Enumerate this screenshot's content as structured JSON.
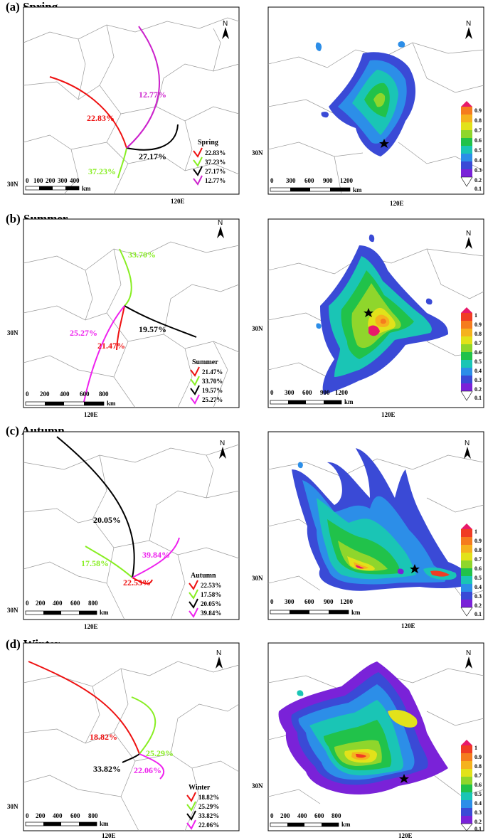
{
  "panels": [
    {
      "title": "(a) Spring",
      "legend_title": "Spring",
      "lat_label": "30N",
      "lon_label": "120E",
      "left_scale": {
        "ticks": [
          "0",
          "100",
          "200",
          "300",
          "400"
        ],
        "unit": "km"
      },
      "right_scale": {
        "ticks": [
          "0",
          "300",
          "600",
          "900",
          "1200"
        ],
        "unit": "km"
      },
      "colorbar": [
        "0.9",
        "0.8",
        "0.7",
        "0.6",
        "0.5",
        "0.4",
        "0.3",
        "0.2",
        "0.1"
      ],
      "clusters": [
        {
          "label": "22.83%",
          "value": 22.83,
          "color": "#ee1111"
        },
        {
          "label": "37.23%",
          "value": 37.23,
          "color": "#88ee22"
        },
        {
          "label": "27.17%",
          "value": 27.17,
          "color": "#000000"
        },
        {
          "label": "12.77%",
          "value": 12.77,
          "color": "#cc22cc"
        }
      ]
    },
    {
      "title": "(b) Summer",
      "legend_title": "Summer",
      "lat_label": "30N",
      "lon_label": "120E",
      "left_scale": {
        "ticks": [
          "0",
          "200",
          "400",
          "600",
          "800"
        ],
        "unit": "km"
      },
      "right_scale": {
        "ticks": [
          "0",
          "300",
          "600",
          "900",
          "1200"
        ],
        "unit": "km"
      },
      "colorbar": [
        "1",
        "0.9",
        "0.8",
        "0.7",
        "0.6",
        "0.5",
        "0.4",
        "0.3",
        "0.2",
        "0.1"
      ],
      "clusters": [
        {
          "label": "21.47%",
          "value": 21.47,
          "color": "#ee1111"
        },
        {
          "label": "33.70%",
          "value": 33.7,
          "color": "#88ee22"
        },
        {
          "label": "19.57%",
          "value": 19.57,
          "color": "#000000"
        },
        {
          "label": "25.27%",
          "value": 25.27,
          "color": "#ee22ee"
        }
      ]
    },
    {
      "title": "(c) Autumn",
      "legend_title": "Autumn",
      "lat_label": "30N",
      "lon_label": "120E",
      "left_scale": {
        "ticks": [
          "0",
          "200",
          "400",
          "600",
          "800"
        ],
        "unit": "km"
      },
      "right_scale": {
        "ticks": [
          "0",
          "300",
          "600",
          "900",
          "1200"
        ],
        "unit": "km"
      },
      "colorbar": [
        "1",
        "0.9",
        "0.8",
        "0.7",
        "0.6",
        "0.5",
        "0.4",
        "0.3",
        "0.2",
        "0.1"
      ],
      "clusters": [
        {
          "label": "22.53%",
          "value": 22.53,
          "color": "#ee1111"
        },
        {
          "label": "17.58%",
          "value": 17.58,
          "color": "#88ee22"
        },
        {
          "label": "20.05%",
          "value": 20.05,
          "color": "#000000"
        },
        {
          "label": "39.84%",
          "value": 39.84,
          "color": "#ee22ee"
        }
      ]
    },
    {
      "title": "(d) Winter",
      "legend_title": "Winter",
      "lat_label": "30N",
      "lon_label": "120E",
      "left_scale": {
        "ticks": [
          "0",
          "200",
          "400",
          "600",
          "800"
        ],
        "unit": "km"
      },
      "right_scale": {
        "ticks": [
          "0",
          "200",
          "400",
          "600",
          "800"
        ],
        "unit": "km"
      },
      "colorbar": [
        "1",
        "0.9",
        "0.8",
        "0.7",
        "0.6",
        "0.5",
        "0.4",
        "0.3",
        "0.2",
        "0.1"
      ],
      "clusters": [
        {
          "label": "18.82%",
          "value": 18.82,
          "color": "#ee1111"
        },
        {
          "label": "25.29%",
          "value": 25.29,
          "color": "#88ee22"
        },
        {
          "label": "33.82%",
          "value": 33.82,
          "color": "#000000"
        },
        {
          "label": "22.06%",
          "value": 22.06,
          "color": "#ee22ee"
        }
      ]
    }
  ],
  "north_label": "N",
  "palette_10": [
    "#e8196a",
    "#f03c24",
    "#f57c1e",
    "#f5b21e",
    "#e2e21a",
    "#8fd62c",
    "#21c24a",
    "#1ac5b5",
    "#2c8ee8",
    "#3a4ad6",
    "#7a22d8"
  ],
  "palette_9": [
    "#e8196a",
    "#f57c1e",
    "#f5b21e",
    "#e2e21a",
    "#8fd62c",
    "#21c24a",
    "#1ac5b5",
    "#2c8ee8",
    "#3a4ad6",
    "#7a22d8"
  ]
}
